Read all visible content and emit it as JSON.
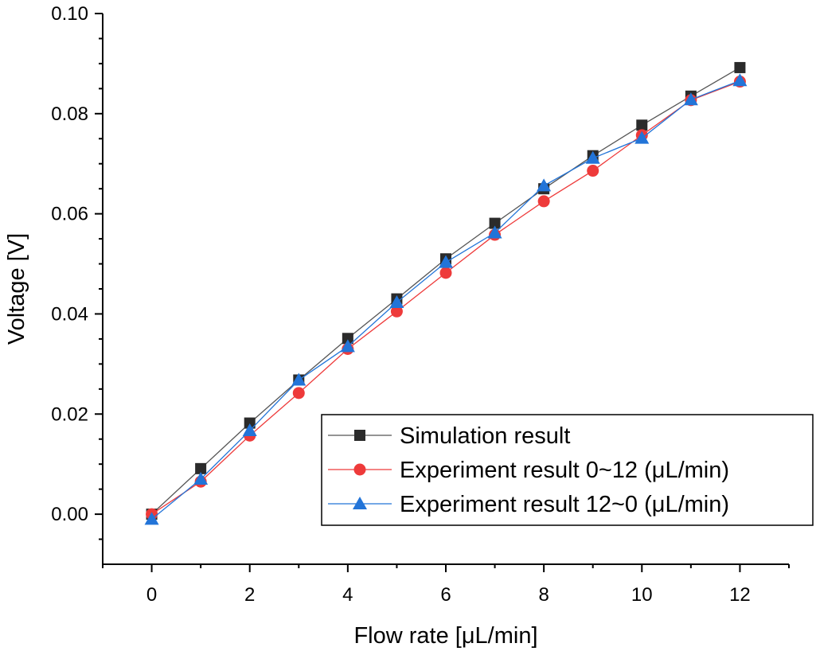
{
  "chart_data": {
    "type": "line",
    "title": "",
    "xlabel": "Flow rate [μL/min]",
    "ylabel": "Voltage [V]",
    "xlim": [
      -1,
      13
    ],
    "ylim": [
      -0.01,
      0.1
    ],
    "xticks": [
      0,
      2,
      4,
      6,
      8,
      10,
      12
    ],
    "yticks": [
      0.0,
      0.02,
      0.04,
      0.06,
      0.08,
      0.1
    ],
    "ytick_labels": [
      "0.00",
      "0.02",
      "0.04",
      "0.06",
      "0.08",
      "0.10"
    ],
    "grid": false,
    "legend_position": "bottom-right",
    "x": [
      0,
      1,
      2,
      3,
      4,
      5,
      6,
      7,
      8,
      9,
      10,
      11,
      12
    ],
    "series": [
      {
        "name": "Simulation result",
        "marker": "square",
        "color": "#2b2b2b",
        "line_color": "#555555",
        "values": [
          0.0,
          0.0091,
          0.0182,
          0.0268,
          0.0351,
          0.043,
          0.051,
          0.0581,
          0.065,
          0.0716,
          0.0777,
          0.0835,
          0.0892
        ]
      },
      {
        "name": "Experiment result 0~12 (μL/min)",
        "marker": "circle",
        "color": "#ee3a3a",
        "line_color": "#ee3a3a",
        "values": [
          0.0,
          0.0065,
          0.0157,
          0.0242,
          0.033,
          0.0405,
          0.0482,
          0.0558,
          0.0625,
          0.0686,
          0.0757,
          0.0827,
          0.0864
        ]
      },
      {
        "name": "Experiment result 12~0 (μL/min)",
        "marker": "triangle",
        "color": "#2274d8",
        "line_color": "#2274d8",
        "values": [
          -0.001,
          0.007,
          0.0167,
          0.0268,
          0.0335,
          0.0423,
          0.0503,
          0.0562,
          0.0656,
          0.0711,
          0.0751,
          0.0828,
          0.0866
        ]
      }
    ]
  }
}
